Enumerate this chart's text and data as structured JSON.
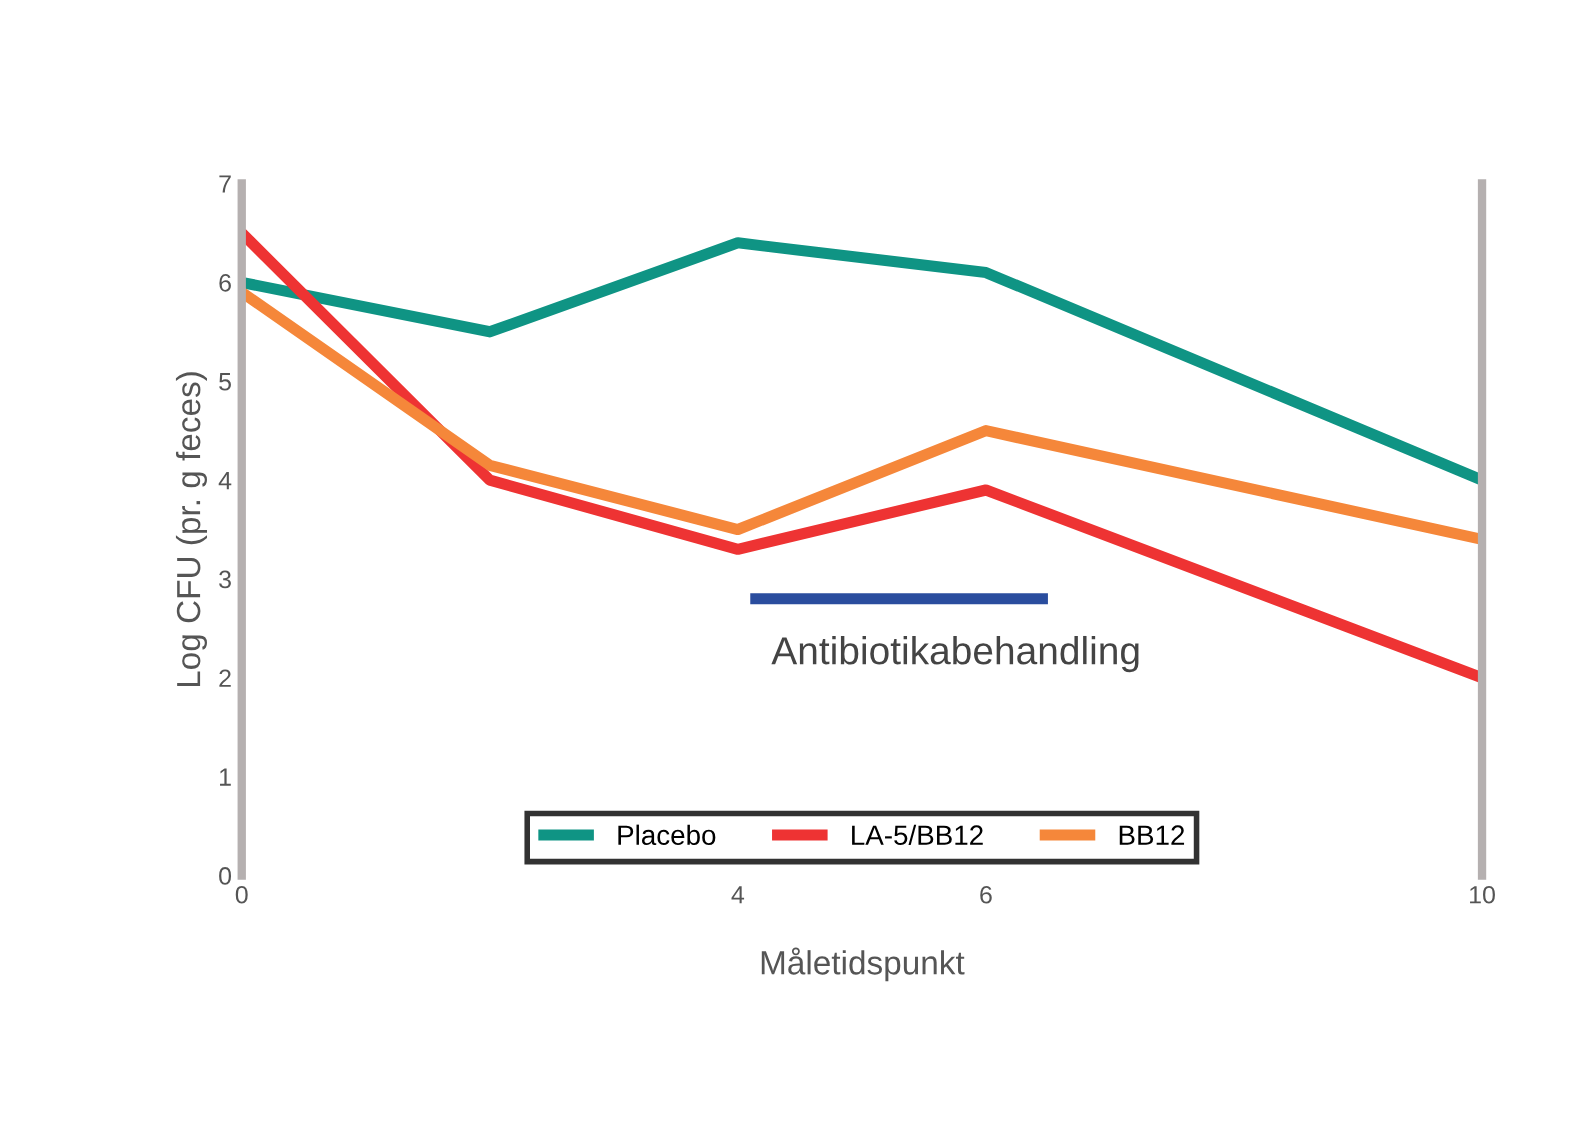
{
  "chart_data": {
    "type": "line",
    "xlabel": "Måletidspunkt",
    "ylabel": "Log CFU (pr. g feces)",
    "x": [
      0,
      2,
      4,
      6,
      10
    ],
    "series": [
      {
        "name": "Placebo",
        "color": "#0f9484",
        "values": [
          6.0,
          5.5,
          6.4,
          6.1,
          4.0
        ]
      },
      {
        "name": "LA-5/BB12",
        "color": "#ee3333",
        "values": [
          6.5,
          4.0,
          3.3,
          3.9,
          2.0
        ]
      },
      {
        "name": "BB12",
        "color": "#f5873a",
        "values": [
          5.9,
          4.15,
          3.5,
          4.5,
          3.4
        ]
      },
      {
        "color": "#2a4d9e",
        "x": [
          4.1,
          6.5
        ],
        "values": [
          2.8,
          2.8
        ]
      }
    ],
    "annotations": [
      "Antibiotikabehandling"
    ],
    "xlim": [
      0,
      10
    ],
    "xticks": [
      0,
      4,
      6,
      10
    ],
    "ylim": [
      0,
      7
    ],
    "yticks": [
      0,
      1,
      2,
      3,
      4,
      5,
      6,
      7
    ],
    "grid": false,
    "legend": "bottom",
    "marker": "none",
    "line_style": "solid"
  }
}
